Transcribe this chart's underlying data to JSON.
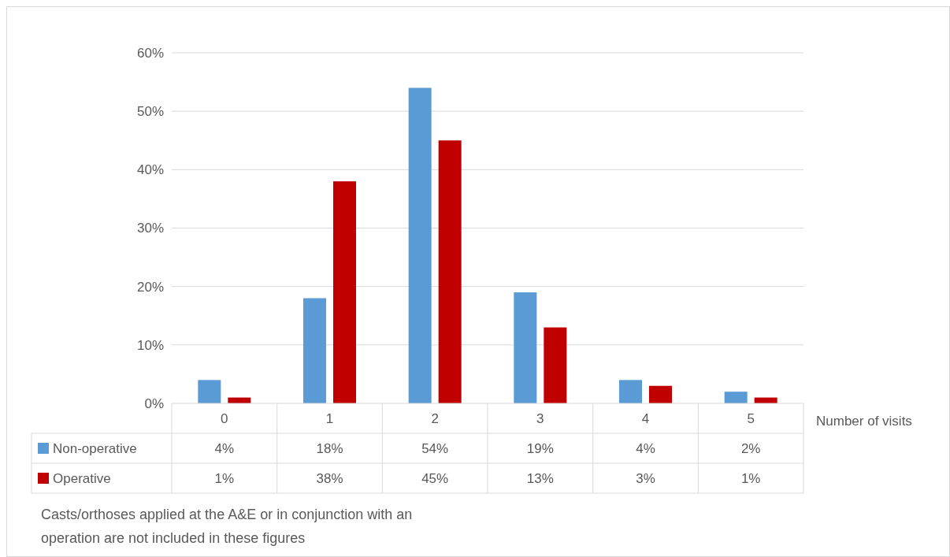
{
  "chart_data": {
    "type": "bar",
    "categories": [
      "0",
      "1",
      "2",
      "3",
      "4",
      "5"
    ],
    "xlabel": "Number of visits",
    "series": [
      {
        "name": "Non-operative",
        "color": "#5b9bd5",
        "values": [
          4,
          18,
          54,
          19,
          4,
          2
        ],
        "value_labels": [
          "4%",
          "18%",
          "54%",
          "19%",
          "4%",
          "2%"
        ]
      },
      {
        "name": "Operative",
        "color": "#c00000",
        "values": [
          1,
          38,
          45,
          13,
          3,
          1
        ],
        "value_labels": [
          "1%",
          "38%",
          "45%",
          "13%",
          "3%",
          "1%"
        ]
      }
    ],
    "ylim": [
      0,
      60
    ],
    "yticks": [
      {
        "value": 0,
        "label": "0%"
      },
      {
        "value": 10,
        "label": "10%"
      },
      {
        "value": 20,
        "label": "20%"
      },
      {
        "value": 30,
        "label": "30%"
      },
      {
        "value": 40,
        "label": "40%"
      },
      {
        "value": 50,
        "label": "50%"
      },
      {
        "value": 60,
        "label": "60%"
      }
    ],
    "grid": "y",
    "legend": "bottom",
    "annotations": [
      "Casts/orthoses applied at the A&E or in conjunction with an operation are not included in these figures"
    ]
  }
}
